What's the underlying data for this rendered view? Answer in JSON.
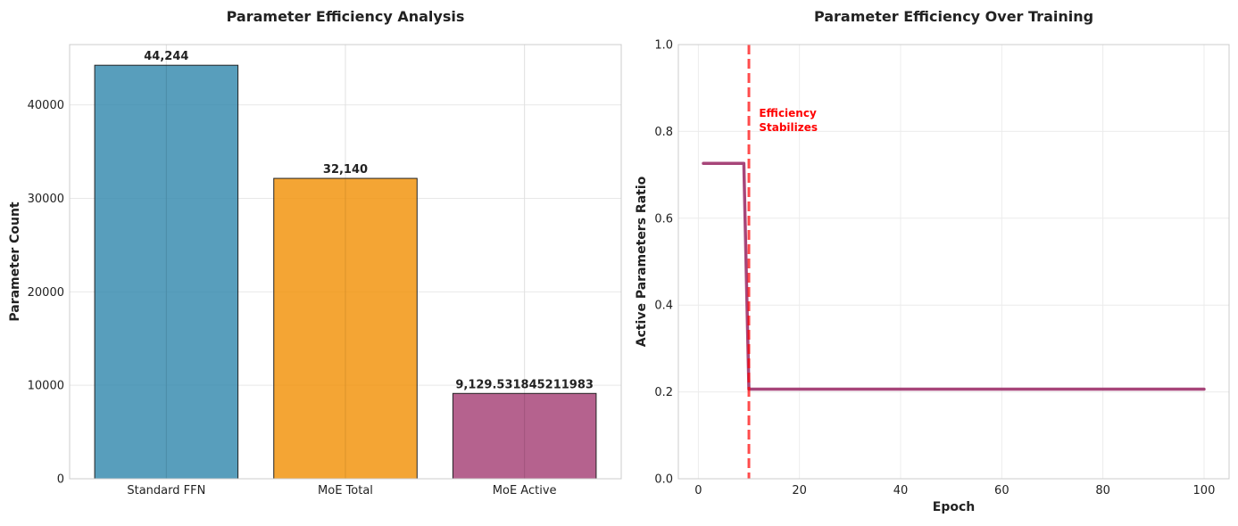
{
  "chart_data": [
    {
      "type": "bar",
      "title": "Parameter Efficiency Analysis",
      "xlabel": "",
      "ylabel": "Parameter Count",
      "categories": [
        "Standard FFN",
        "MoE Total",
        "MoE Active"
      ],
      "values": [
        44244,
        32140,
        9129.531845211983
      ],
      "data_labels": [
        "44,244",
        "32,140",
        "9,129.531845211983"
      ],
      "colors": [
        "#2E86AB",
        "#F18F01",
        "#A23B72"
      ],
      "ylim": [
        0,
        46456
      ],
      "yticks": [
        0,
        10000,
        20000,
        30000,
        40000
      ],
      "ytick_labels": [
        "0",
        "10000",
        "20000",
        "30000",
        "40000"
      ],
      "grid": true
    },
    {
      "type": "line",
      "title": "Parameter Efficiency Over Training",
      "xlabel": "Epoch",
      "ylabel": "Active Parameters Ratio",
      "x_start": 1,
      "x_end": 100,
      "segments": [
        {
          "from_epoch": 1,
          "to_epoch": 9,
          "value": 0.7264
        },
        {
          "from_epoch": 10,
          "to_epoch": 100,
          "value": 0.2063
        }
      ],
      "line_color": "#A23B72",
      "xlim": [
        -3.95,
        104.95
      ],
      "ylim": [
        0,
        1
      ],
      "xticks": [
        0,
        20,
        40,
        60,
        80,
        100
      ],
      "xtick_labels": [
        "0",
        "20",
        "40",
        "60",
        "80",
        "100"
      ],
      "yticks": [
        0,
        0.2,
        0.4,
        0.6,
        0.8,
        1.0
      ],
      "ytick_labels": [
        "0.0",
        "0.2",
        "0.4",
        "0.6",
        "0.8",
        "1.0"
      ],
      "vline": {
        "x": 10,
        "color": "#FF0000",
        "style": "dashed"
      },
      "annotation": {
        "text_lines": [
          "Efficiency",
          "Stabilizes"
        ],
        "x": 12,
        "y": 0.83,
        "color": "#FF0000"
      },
      "grid": true
    }
  ]
}
